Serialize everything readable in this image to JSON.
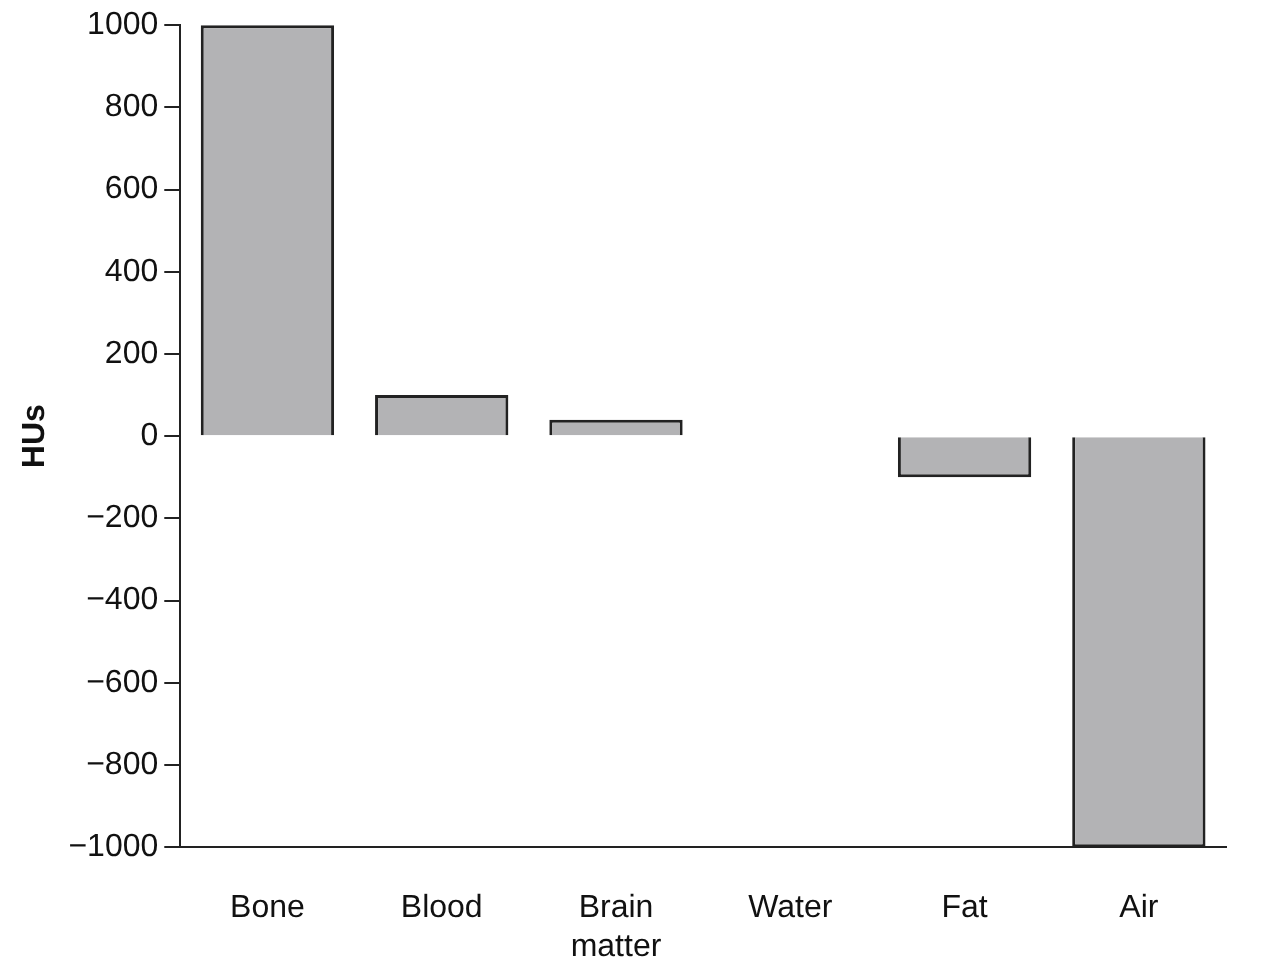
{
  "chart_data": {
    "type": "bar",
    "ylabel": "HUs",
    "categories": [
      "Bone",
      "Blood",
      "Brain matter",
      "Water",
      "Fat",
      "Air"
    ],
    "values": [
      1000,
      100,
      40,
      0,
      -100,
      -1000
    ],
    "color": "#b3b3b5",
    "ylim": [
      -1000,
      1000
    ],
    "yticks": [
      {
        "value": -1000,
        "label": "−1000"
      },
      {
        "value": -800,
        "label": "−800"
      },
      {
        "value": -600,
        "label": "−600"
      },
      {
        "value": -400,
        "label": "−400"
      },
      {
        "value": -200,
        "label": "−200"
      },
      0,
      200,
      400,
      600,
      800,
      1000
    ],
    "grid": false,
    "legend": false
  }
}
